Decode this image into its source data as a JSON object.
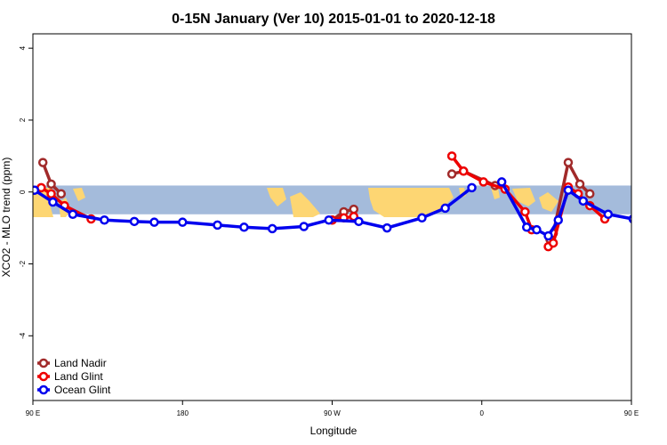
{
  "chart_data": {
    "type": "line",
    "title": "0-15N January (Ver 10)   2015-01-01 to 2020-12-18",
    "xlabel": "Longitude",
    "ylabel": "XCO2 - MLO trend (ppm)",
    "xlim": [
      90,
      450
    ],
    "ylim": [
      -5.8,
      4.4
    ],
    "x_ticks": [
      {
        "value": 90,
        "label": "90 E"
      },
      {
        "value": 180,
        "label": "180"
      },
      {
        "value": 270,
        "label": "90 W"
      },
      {
        "value": 360,
        "label": "0"
      },
      {
        "value": 450,
        "label": "90 E"
      },
      {
        "value": 540,
        "label": "180"
      }
    ],
    "y_ticks": [
      -4,
      -2,
      0,
      2,
      4
    ],
    "band": {
      "ymin": -0.62,
      "ymax": 0.18,
      "color": "#A4BBDB",
      "land_color": "#FDD673"
    },
    "legend_position": "bottom-left",
    "series": [
      {
        "name": "Land Nadir",
        "color": "#A12A2A",
        "segments": [
          {
            "x": [
              96,
              101,
              107
            ],
            "y": [
              0.82,
              0.22,
              -0.05
            ]
          },
          {
            "x": [
              270,
              277,
              283
            ],
            "y": [
              -0.78,
              -0.55,
              -0.48
            ]
          },
          {
            "x": [
              342,
              349,
              368
            ],
            "y": [
              0.5,
              0.58,
              0.18
            ]
          },
          {
            "x": [
              401,
              403,
              412,
              419,
              425
            ],
            "y": [
              -1.32,
              -1.15,
              0.82,
              0.22,
              -0.05
            ]
          }
        ]
      },
      {
        "name": "Land Glint",
        "color": "#EE0000",
        "segments": [
          {
            "x": [
              95,
              101,
              109,
              125
            ],
            "y": [
              0.12,
              -0.05,
              -0.38,
              -0.75
            ]
          },
          {
            "x": [
              270,
              277,
              283
            ],
            "y": [
              -0.78,
              -0.72,
              -0.68
            ]
          },
          {
            "x": [
              342,
              349,
              361,
              374,
              386,
              390
            ],
            "y": [
              1.0,
              0.58,
              0.28,
              0.08,
              -0.55,
              -1.05
            ]
          },
          {
            "x": [
              400,
              403,
              412,
              418,
              425,
              434
            ],
            "y": [
              -1.52,
              -1.42,
              0.14,
              -0.05,
              -0.38,
              -0.75
            ]
          }
        ]
      },
      {
        "name": "Ocean Glint",
        "color": "#0000EE",
        "segments": [
          {
            "x": [
              91,
              102,
              114,
              133,
              151,
              163,
              180,
              201,
              217,
              234,
              253,
              268,
              286,
              303,
              324,
              338,
              354
            ],
            "y": [
              0.05,
              -0.28,
              -0.62,
              -0.78,
              -0.82,
              -0.84,
              -0.84,
              -0.92,
              -0.98,
              -1.02,
              -0.96,
              -0.78,
              -0.82,
              -1.0,
              -0.72,
              -0.45,
              0.12
            ]
          },
          {
            "x": [
              372,
              387,
              393,
              400,
              406,
              412,
              421,
              436,
              451,
              467,
              473,
              486,
              497,
              515,
              530,
              538,
              548,
              557,
              564
            ],
            "y": [
              0.28,
              -0.98,
              -1.05,
              -1.22,
              -0.78,
              0.05,
              -0.25,
              -0.62,
              -0.75,
              -0.82,
              -0.82,
              -0.82,
              -0.82,
              -0.82,
              -0.82,
              -0.82,
              -0.82,
              -0.82,
              -0.82
            ]
          }
        ]
      }
    ]
  }
}
